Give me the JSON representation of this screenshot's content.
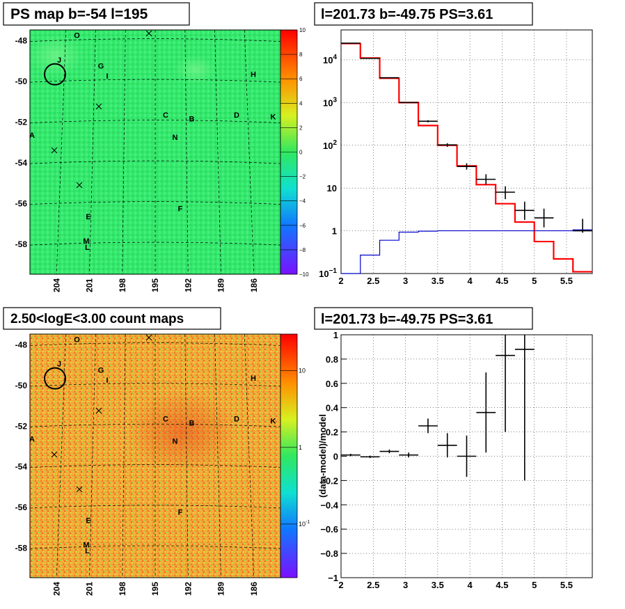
{
  "panels": {
    "top_left": {
      "title": "PS map b=-54 l=195",
      "lat_labels": [
        "-48",
        "-50",
        "-52",
        "-54",
        "-56",
        "-58"
      ],
      "lon_labels": [
        "204",
        "201",
        "198",
        "195",
        "192",
        "189",
        "186"
      ],
      "colorbar_ticks": [
        "10",
        "8",
        "6",
        "4",
        "2",
        "0",
        "−2",
        "−4",
        "−6",
        "−8",
        "−10"
      ],
      "sources": [
        "O",
        "J",
        "G",
        "I",
        "H",
        "C",
        "B",
        "D",
        "K",
        "N",
        "A",
        "F",
        "E",
        "M",
        "L"
      ]
    },
    "bottom_left": {
      "title": "2.50<logE<3.00 count maps",
      "lat_labels": [
        "-48",
        "-50",
        "-52",
        "-54",
        "-56",
        "-58"
      ],
      "lon_labels": [
        "204",
        "201",
        "198",
        "195",
        "192",
        "189",
        "186"
      ],
      "colorbar_ticks": [
        "10",
        "1",
        "10",
        "-1"
      ],
      "sources": [
        "O",
        "J",
        "G",
        "I",
        "H",
        "C",
        "B",
        "D",
        "K",
        "N",
        "A",
        "F",
        "E",
        "M",
        "L"
      ]
    },
    "top_right": {
      "title": "l=201.73 b=-49.75 PS=3.61",
      "x_tick_labels": [
        "2",
        "2.5",
        "3",
        "3.5",
        "4",
        "4.5",
        "5",
        "5.5"
      ],
      "y_tick_labels": [
        "10",
        "1",
        "10",
        "10",
        "10",
        "10"
      ],
      "y_tick_exponents": [
        "−1",
        "",
        "",
        "2",
        "3",
        "4"
      ]
    },
    "bottom_right": {
      "title": "l=201.73 b=-49.75 PS=3.61",
      "ylabel": "(data-model)/model",
      "x_tick_labels": [
        "2",
        "2.5",
        "3",
        "3.5",
        "4",
        "4.5",
        "5",
        "5.5"
      ],
      "y_tick_labels": [
        "1",
        "0.8",
        "0.6",
        "0.4",
        "0.2",
        "0",
        "−0.2",
        "−0.4",
        "−0.6",
        "−0.8",
        "−1"
      ]
    }
  },
  "colors": {
    "model": "#ff0000",
    "data": "#000000",
    "background_model": "#0000cc",
    "map_green": "#2fe86a",
    "map_orange": "#f29a2e"
  },
  "chart_data": [
    {
      "type": "heatmap",
      "title": "PS map b=-54 l=195",
      "xlabel": "",
      "ylabel": "",
      "xlim": [
        207,
        183
      ],
      "ylim": [
        -59.5,
        -47.5
      ],
      "zlim": [
        -10,
        10
      ],
      "colorbar": "rainbow",
      "sources": [
        {
          "name": "O",
          "l": 202.5,
          "b": -47.9
        },
        {
          "name": "J",
          "l": 204.2,
          "b": -49.1
        },
        {
          "name": "G",
          "l": 200.2,
          "b": -49.4
        },
        {
          "name": "I",
          "l": 199.6,
          "b": -49.9
        },
        {
          "name": "H",
          "l": 185.6,
          "b": -49.8
        },
        {
          "name": "C",
          "l": 194.0,
          "b": -51.8
        },
        {
          "name": "B",
          "l": 191.5,
          "b": -52.0
        },
        {
          "name": "D",
          "l": 187.2,
          "b": -51.8
        },
        {
          "name": "K",
          "l": 183.7,
          "b": -51.9
        },
        {
          "name": "N",
          "l": 193.1,
          "b": -52.9
        },
        {
          "name": "A",
          "l": 206.8,
          "b": -52.8
        },
        {
          "name": "F",
          "l": 192.6,
          "b": -56.4
        },
        {
          "name": "E",
          "l": 201.4,
          "b": -56.8
        },
        {
          "name": "M",
          "l": 201.6,
          "b": -58.0
        },
        {
          "name": "L",
          "l": 201.5,
          "b": -58.3
        }
      ]
    },
    {
      "type": "heatmap",
      "title": "2.50<logE<3.00 count maps",
      "xlabel": "",
      "ylabel": "",
      "xlim": [
        207,
        183
      ],
      "ylim": [
        -59.5,
        -47.5
      ],
      "zlim": [
        0.02,
        30
      ],
      "log_z": true
    },
    {
      "type": "line",
      "title": "l=201.73 b=-49.75 PS=3.61",
      "xlabel": "",
      "ylabel": "",
      "xlim": [
        2,
        5.9
      ],
      "ylim": [
        0.1,
        50000
      ],
      "log_y": true,
      "grid": true,
      "bin_edges": [
        2.0,
        2.3,
        2.6,
        2.9,
        3.2,
        3.5,
        3.8,
        4.1,
        4.4,
        4.7,
        5.0,
        5.3,
        5.6,
        5.9
      ],
      "series": [
        {
          "style": "step",
          "color": "red",
          "values": [
            24000,
            11000,
            3700,
            1000,
            290,
            100,
            33,
            12,
            4.3,
            1.6,
            0.56,
            0.22,
            0.11
          ]
        },
        {
          "style": "step",
          "color": "blue",
          "values": [
            0.1,
            0.27,
            0.6,
            0.93,
            0.98,
            1.0,
            1.0,
            1.0,
            1.0,
            1.0,
            1.0,
            1.0,
            1.05
          ]
        },
        {
          "style": "points",
          "color": "black",
          "x": [
            2.15,
            2.45,
            2.75,
            3.05,
            3.35,
            3.65,
            3.95,
            4.25,
            4.55,
            4.85,
            5.15,
            5.75
          ],
          "y": [
            24500,
            10800,
            3800,
            1000,
            365,
            102,
            32,
            16,
            8,
            3,
            2,
            1
          ],
          "err_low": [
            24400,
            10700,
            3750,
            990,
            345,
            92,
            27,
            12,
            5.5,
            1.8,
            1.2,
            0.9
          ],
          "err_high": [
            24600,
            10900,
            3850,
            1010,
            385,
            112,
            38,
            21,
            11,
            4.8,
            3.3,
            1.9
          ]
        }
      ]
    },
    {
      "type": "scatter",
      "title": "l=201.73 b=-49.75 PS=3.61",
      "xlabel": "",
      "ylabel": "(data-model)/model",
      "xlim": [
        2,
        5.9
      ],
      "ylim": [
        -1,
        1
      ],
      "grid": true,
      "x": [
        2.15,
        2.45,
        2.75,
        3.05,
        3.35,
        3.65,
        3.95,
        4.25,
        4.55,
        4.85
      ],
      "y": [
        0.01,
        -0.005,
        0.04,
        0.01,
        0.25,
        0.09,
        0.0,
        0.36,
        0.83,
        0.88
      ],
      "err": [
        0.01,
        0.01,
        0.015,
        0.02,
        0.06,
        0.1,
        0.17,
        0.33,
        0.63,
        1.08
      ],
      "xerr": 0.15
    }
  ]
}
